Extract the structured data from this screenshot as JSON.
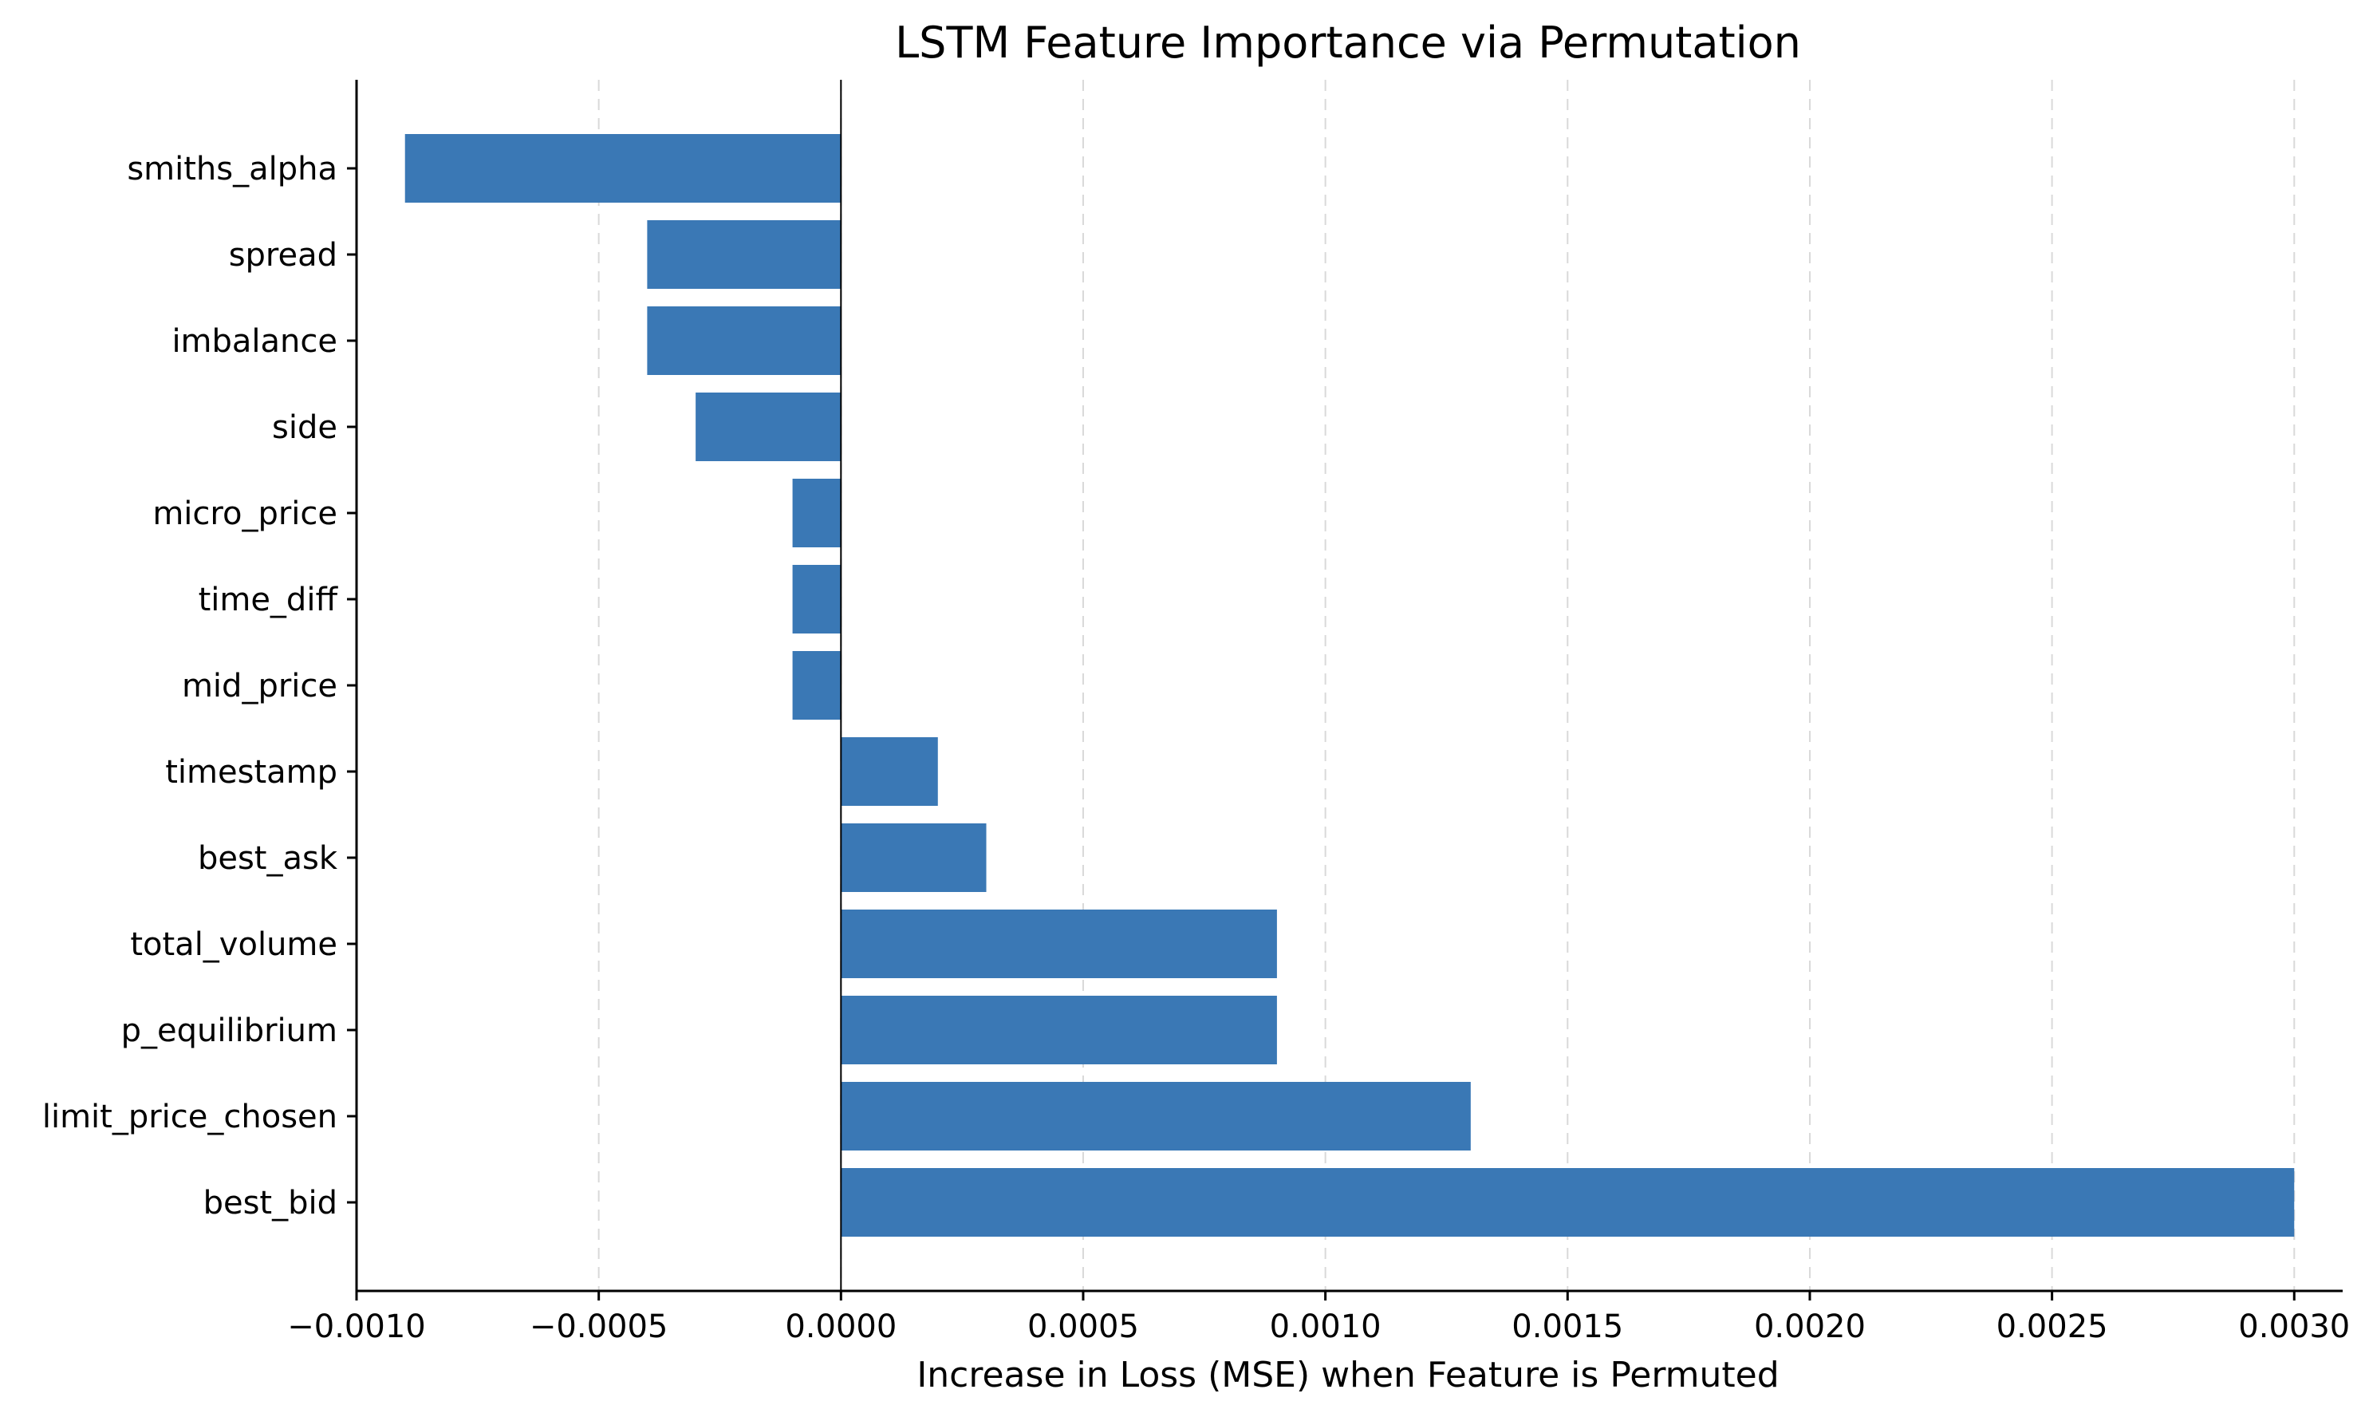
{
  "chart_data": {
    "type": "bar",
    "orientation": "horizontal",
    "title": "LSTM Feature Importance via Permutation",
    "xlabel": "Increase in Loss (MSE) when Feature is Permuted",
    "ylabel": "",
    "xlim": [
      -0.001,
      0.0031
    ],
    "xticks": [
      -0.001,
      -0.0005,
      0,
      0.0005,
      0.001,
      0.0015,
      0.002,
      0.0025,
      0.003
    ],
    "xtick_labels": [
      "−0.0010",
      "−0.0005",
      "0.0000",
      "0.0005",
      "0.0010",
      "0.0015",
      "0.0020",
      "0.0025",
      "0.0030"
    ],
    "grid": "x dashed",
    "bar_color": "#3a78b5",
    "categories": [
      "smiths_alpha",
      "spread",
      "imbalance",
      "side",
      "micro_price",
      "time_diff",
      "mid_price",
      "timestamp",
      "best_ask",
      "total_volume",
      "p_equilibrium",
      "limit_price_chosen",
      "best_bid"
    ],
    "values": [
      -0.0009,
      -0.0004,
      -0.0004,
      -0.0003,
      -0.0001,
      -0.0001,
      -0.0001,
      0.0002,
      0.0003,
      0.0009,
      0.0009,
      0.0013,
      0.003
    ]
  }
}
